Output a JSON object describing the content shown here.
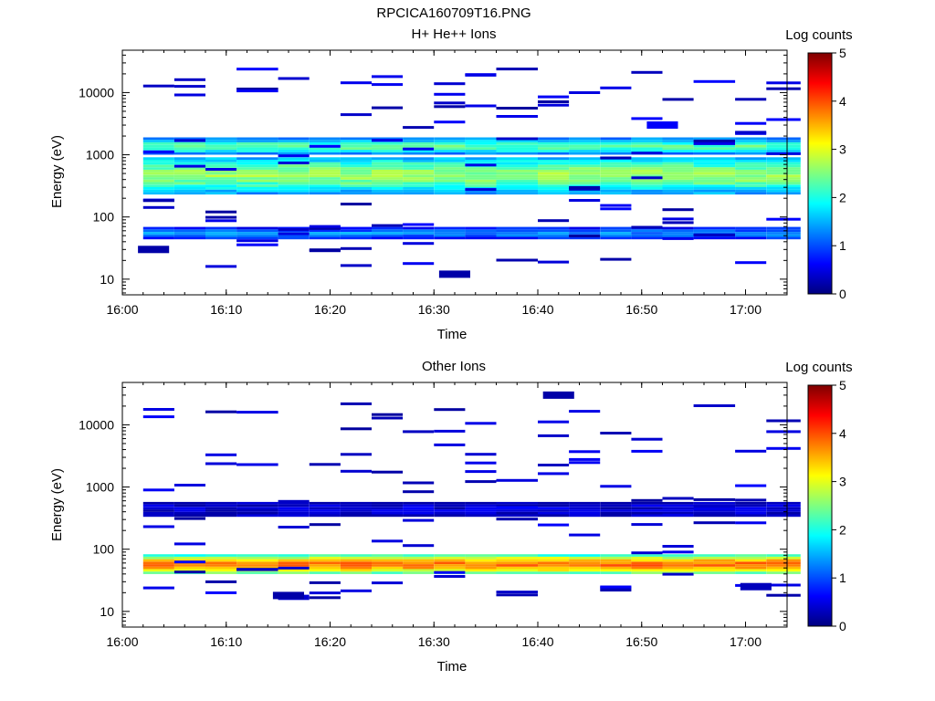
{
  "figure": {
    "title": "RPCICA160709T16.PNG"
  },
  "colormap": [
    "#00007f",
    "#0000ff",
    "#007fff",
    "#00ffff",
    "#7fff7f",
    "#ffff00",
    "#ff7f00",
    "#ff0000",
    "#7f0000"
  ],
  "chart_data": [
    {
      "type": "heatmap",
      "title": "H+ He++ Ions",
      "xlabel": "Time",
      "ylabel": "Energy (eV)",
      "y_scale": "log",
      "x_ticks": [
        "16:00",
        "16:10",
        "16:20",
        "16:30",
        "16:40",
        "16:50",
        "17:00"
      ],
      "y_ticks": [
        "10",
        "100",
        "1000",
        "10000"
      ],
      "colorbar": {
        "label": "Log counts",
        "ticks": [
          "0",
          "1",
          "2",
          "3",
          "4",
          "5"
        ],
        "range": [
          0,
          5
        ]
      },
      "time_bins_start": [
        "16:02",
        "16:05",
        "16:08",
        "16:11",
        "16:15",
        "16:18",
        "16:21",
        "16:24",
        "16:27",
        "16:30",
        "16:33",
        "16:36",
        "16:40",
        "16:43",
        "16:46",
        "16:49",
        "16:52",
        "16:55",
        "16:59",
        "17:02"
      ],
      "bands": [
        {
          "energy_range_eV": [
            1050,
            1750
          ],
          "log_counts": 2.3
        },
        {
          "energy_range_eV": [
            250,
            900
          ],
          "log_counts": 2.6
        },
        {
          "energy_range_eV": [
            45,
            65
          ],
          "log_counts": 1.3
        }
      ],
      "sparse_cells": [
        {
          "time": "16:32",
          "energy_eV": 12,
          "log_counts": 0.2
        },
        {
          "time": "16:03",
          "energy_eV": 30,
          "log_counts": 0.2
        },
        {
          "time": "16:52",
          "energy_eV": 3000,
          "log_counts": 0.6
        }
      ]
    },
    {
      "type": "heatmap",
      "title": "Other Ions",
      "xlabel": "Time",
      "ylabel": "Energy (eV)",
      "y_scale": "log",
      "x_ticks": [
        "16:00",
        "16:10",
        "16:20",
        "16:30",
        "16:40",
        "16:50",
        "17:00"
      ],
      "y_ticks": [
        "10",
        "100",
        "1000",
        "10000"
      ],
      "colorbar": {
        "label": "Log counts",
        "ticks": [
          "0",
          "1",
          "2",
          "3",
          "4",
          "5"
        ],
        "range": [
          0,
          5
        ]
      },
      "time_bins_start": [
        "16:02",
        "16:05",
        "16:08",
        "16:11",
        "16:15",
        "16:18",
        "16:21",
        "16:24",
        "16:27",
        "16:30",
        "16:33",
        "16:36",
        "16:40",
        "16:43",
        "16:46",
        "16:49",
        "16:52",
        "16:55",
        "16:59",
        "17:02"
      ],
      "bands": [
        {
          "energy_range_eV": [
            40,
            80
          ],
          "log_counts": 3.8
        },
        {
          "energy_range_eV": [
            350,
            550
          ],
          "log_counts": 0.4
        }
      ],
      "sparse_cells": [
        {
          "time": "16:16",
          "energy_eV": 18,
          "log_counts": 0.2
        },
        {
          "time": "17:01",
          "energy_eV": 25,
          "log_counts": 0.3
        },
        {
          "time": "16:42",
          "energy_eV": 30000,
          "log_counts": 0.2
        }
      ]
    }
  ]
}
